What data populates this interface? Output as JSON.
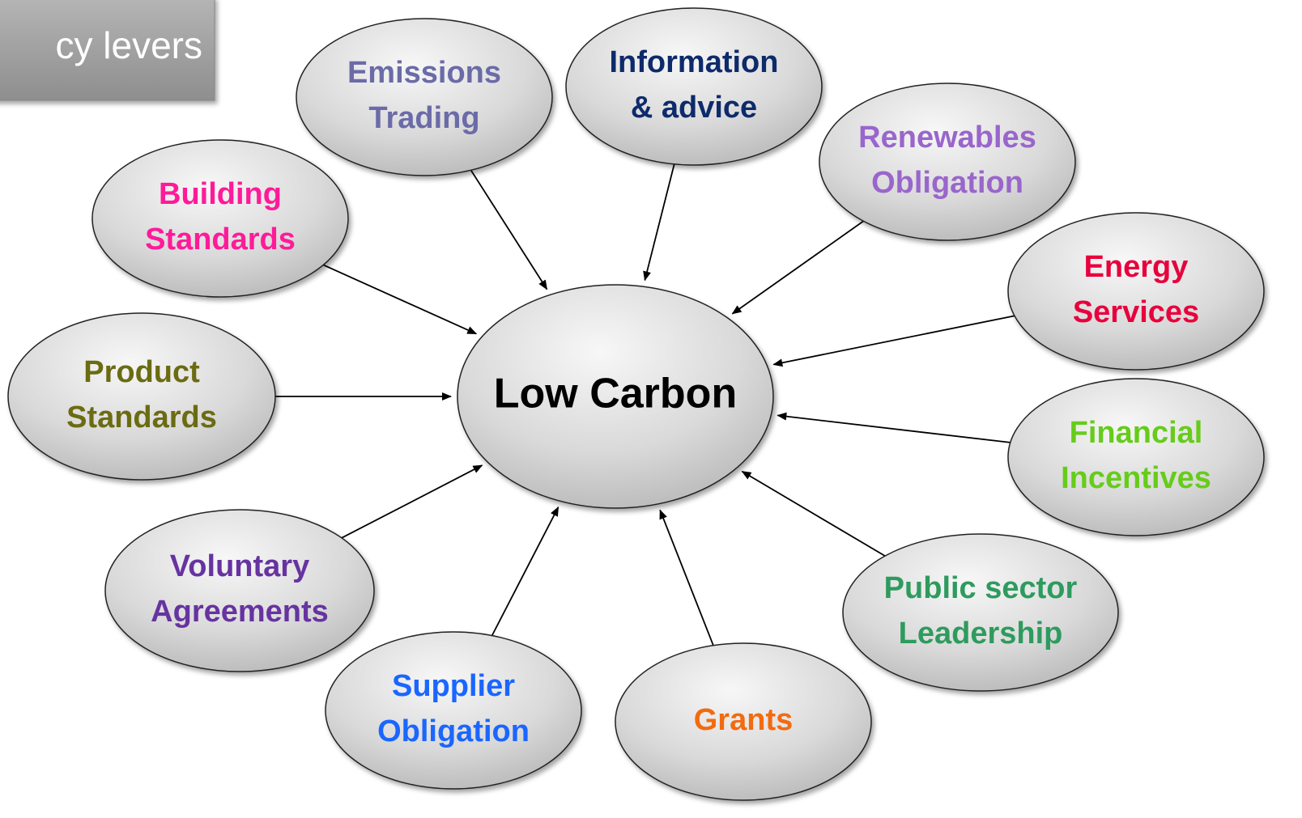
{
  "title": "cy levers",
  "center": {
    "label": "Low Carbon",
    "color": "#000000"
  },
  "nodes": [
    {
      "label": [
        "Emissions",
        "Trading"
      ],
      "color": "#6b6ba8"
    },
    {
      "label": [
        "Information",
        "& advice"
      ],
      "color": "#0d2a6b"
    },
    {
      "label": [
        "Renewables",
        "Obligation"
      ],
      "color": "#9966cc"
    },
    {
      "label": [
        "Energy",
        "Services"
      ],
      "color": "#e8003c"
    },
    {
      "label": [
        "Financial",
        "Incentives"
      ],
      "color": "#66cc1a"
    },
    {
      "label": [
        "Public sector",
        "Leadership"
      ],
      "color": "#2e9b5e"
    },
    {
      "label": [
        "Grants"
      ],
      "color": "#f26b0f"
    },
    {
      "label": [
        "Supplier",
        "Obligation"
      ],
      "color": "#1a66ff"
    },
    {
      "label": [
        "Voluntary",
        "Agreements"
      ],
      "color": "#6633a0"
    },
    {
      "label": [
        "Product",
        "Standards"
      ],
      "color": "#6b6b12"
    },
    {
      "label": [
        "Building",
        "Standards"
      ],
      "color": "#ff1a99"
    }
  ]
}
